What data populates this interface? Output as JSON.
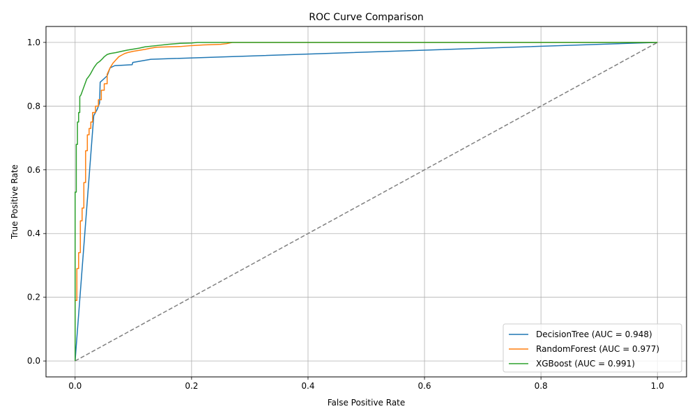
{
  "chart_data": {
    "type": "line",
    "title": "ROC Curve Comparison",
    "xlabel": "False Positive Rate",
    "ylabel": "True Positive Rate",
    "xlim": [
      -0.05,
      1.05
    ],
    "ylim": [
      -0.05,
      1.05
    ],
    "xticks": [
      0.0,
      0.2,
      0.4,
      0.6,
      0.8,
      1.0
    ],
    "yticks": [
      0.0,
      0.2,
      0.4,
      0.6,
      0.8,
      1.0
    ],
    "xtick_labels": [
      "0.0",
      "0.2",
      "0.4",
      "0.6",
      "0.8",
      "1.0"
    ],
    "ytick_labels": [
      "0.0",
      "0.2",
      "0.4",
      "0.6",
      "0.8",
      "1.0"
    ],
    "grid": true,
    "legend_position": "bottom-right",
    "series": [
      {
        "name": "DecisionTree",
        "legend_label": "DecisionTree (AUC = 0.948)",
        "auc": 0.948,
        "color": "#1f77b4",
        "x": [
          0.0,
          0.032,
          0.038,
          0.042,
          0.043,
          0.055,
          0.06,
          0.068,
          0.098,
          0.099,
          0.13,
          1.0
        ],
        "y": [
          0.0,
          0.77,
          0.79,
          0.81,
          0.875,
          0.895,
          0.92,
          0.927,
          0.93,
          0.937,
          0.947,
          1.0
        ]
      },
      {
        "name": "RandomForest",
        "legend_label": "RandomForest (AUC = 0.977)",
        "auc": 0.977,
        "color": "#ff7f0e",
        "x": [
          0.0,
          0.0,
          0.003,
          0.003,
          0.006,
          0.006,
          0.009,
          0.009,
          0.012,
          0.012,
          0.015,
          0.015,
          0.018,
          0.018,
          0.021,
          0.021,
          0.024,
          0.024,
          0.027,
          0.027,
          0.03,
          0.03,
          0.035,
          0.035,
          0.04,
          0.04,
          0.045,
          0.045,
          0.05,
          0.05,
          0.055,
          0.055,
          0.06,
          0.065,
          0.07,
          0.075,
          0.08,
          0.085,
          0.09,
          0.1,
          0.11,
          0.12,
          0.13,
          0.14,
          0.16,
          0.18,
          0.2,
          0.22,
          0.25,
          0.26,
          0.27,
          1.0
        ],
        "y": [
          0.0,
          0.19,
          0.19,
          0.29,
          0.29,
          0.34,
          0.34,
          0.44,
          0.44,
          0.48,
          0.48,
          0.56,
          0.56,
          0.66,
          0.66,
          0.71,
          0.71,
          0.73,
          0.73,
          0.75,
          0.75,
          0.78,
          0.78,
          0.8,
          0.8,
          0.82,
          0.82,
          0.85,
          0.85,
          0.87,
          0.87,
          0.9,
          0.92,
          0.935,
          0.945,
          0.955,
          0.96,
          0.965,
          0.968,
          0.972,
          0.975,
          0.978,
          0.982,
          0.985,
          0.986,
          0.987,
          0.99,
          0.992,
          0.994,
          0.996,
          1.0,
          1.0
        ]
      },
      {
        "name": "XGBoost",
        "legend_label": "XGBoost (AUC = 0.991)",
        "auc": 0.991,
        "color": "#2ca02c",
        "x": [
          0.0,
          0.0,
          0.002,
          0.002,
          0.004,
          0.004,
          0.006,
          0.006,
          0.008,
          0.008,
          0.01,
          0.012,
          0.014,
          0.016,
          0.018,
          0.02,
          0.023,
          0.026,
          0.029,
          0.032,
          0.035,
          0.038,
          0.042,
          0.046,
          0.05,
          0.055,
          0.06,
          0.07,
          0.08,
          0.09,
          0.1,
          0.11,
          0.12,
          0.14,
          0.16,
          0.18,
          0.2,
          0.21,
          1.0
        ],
        "y": [
          0.0,
          0.53,
          0.53,
          0.68,
          0.68,
          0.75,
          0.75,
          0.78,
          0.78,
          0.83,
          0.835,
          0.845,
          0.855,
          0.865,
          0.875,
          0.885,
          0.892,
          0.9,
          0.91,
          0.92,
          0.928,
          0.935,
          0.94,
          0.947,
          0.955,
          0.962,
          0.965,
          0.968,
          0.972,
          0.976,
          0.979,
          0.982,
          0.986,
          0.99,
          0.994,
          0.997,
          0.998,
          1.0,
          1.0
        ]
      },
      {
        "name": "Chance",
        "color": "#808080",
        "dashed": true,
        "x": [
          0.0,
          1.0
        ],
        "y": [
          0.0,
          1.0
        ]
      }
    ]
  }
}
